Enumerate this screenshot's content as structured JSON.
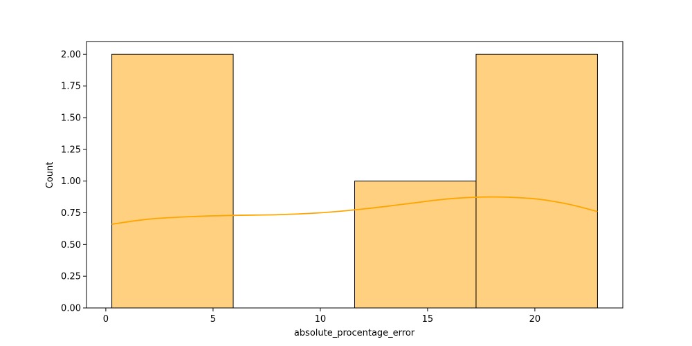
{
  "chart_data": {
    "type": "bar",
    "subtype": "histogram-with-kde",
    "xlabel": "absolute_procentage_error",
    "ylabel": "Count",
    "xlim": [
      -0.9,
      24.1
    ],
    "ylim": [
      0,
      2.1
    ],
    "grid": false,
    "x_ticks": [
      0,
      5,
      10,
      15,
      20
    ],
    "y_ticks": [
      0.0,
      0.25,
      0.5,
      0.75,
      1.0,
      1.25,
      1.5,
      1.75,
      2.0
    ],
    "x_tick_labels": [
      "0",
      "5",
      "10",
      "15",
      "20"
    ],
    "y_tick_labels": [
      "0.00",
      "0.25",
      "0.50",
      "0.75",
      "1.00",
      "1.25",
      "1.50",
      "1.75",
      "2.00"
    ],
    "bins": [
      {
        "start": 0.28,
        "end": 5.94,
        "count": 2
      },
      {
        "start": 5.94,
        "end": 11.6,
        "count": 0
      },
      {
        "start": 11.6,
        "end": 17.26,
        "count": 1
      },
      {
        "start": 17.26,
        "end": 22.92,
        "count": 2
      }
    ],
    "kde": {
      "x": [
        0.28,
        2.0,
        4.0,
        6.0,
        8.0,
        10.0,
        12.0,
        14.0,
        16.0,
        18.0,
        20.0,
        21.5,
        22.92
      ],
      "y": [
        0.66,
        0.7,
        0.72,
        0.73,
        0.735,
        0.75,
        0.78,
        0.82,
        0.86,
        0.875,
        0.86,
        0.82,
        0.76
      ]
    },
    "colors": {
      "bar_fill": "#fed07f",
      "bar_edge": "#000000",
      "kde_line": "#ffa500"
    }
  }
}
